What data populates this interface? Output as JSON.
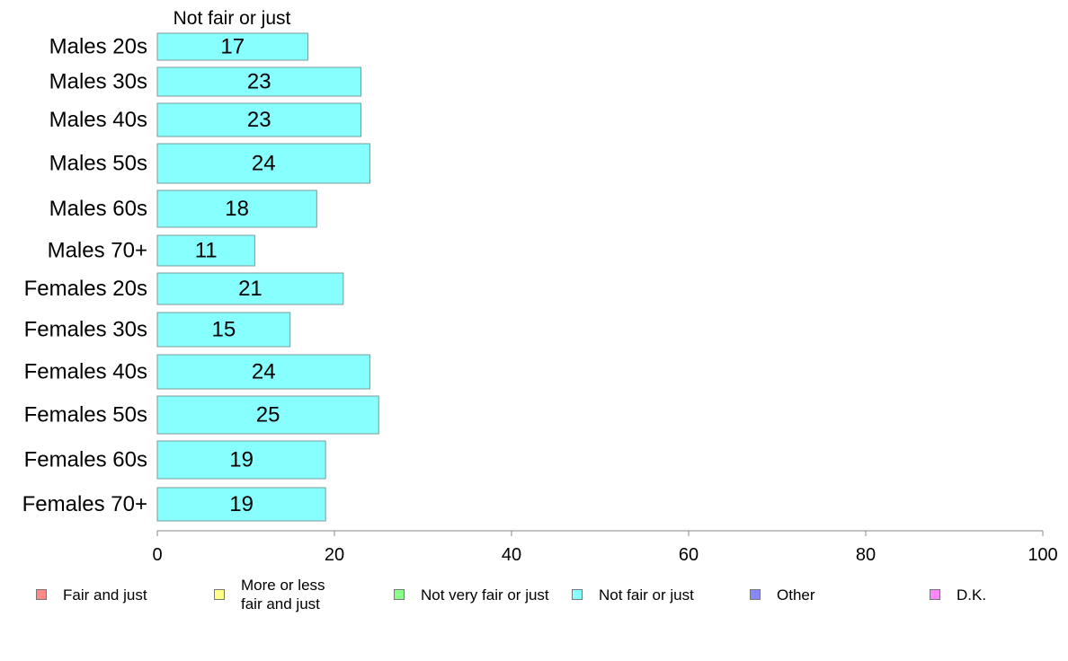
{
  "chart_data": {
    "type": "bar",
    "orientation": "horizontal",
    "series_label": "Not fair or just",
    "categories": [
      "Males 20s",
      "Males 30s",
      "Males 40s",
      "Males 50s",
      "Males 60s",
      "Males 70+",
      "Females 20s",
      "Females 30s",
      "Females 40s",
      "Females 50s",
      "Females 60s",
      "Females 70+"
    ],
    "values": [
      17,
      23,
      23,
      24,
      18,
      11,
      21,
      15,
      24,
      25,
      19,
      19
    ],
    "xlim": [
      0,
      100
    ],
    "xticks": [
      0,
      20,
      40,
      60,
      80,
      100
    ],
    "bar_color": "#88ffff",
    "bar_edge_color": "#7a9a9a",
    "grid": false,
    "legend_position": "bottom",
    "legend": [
      {
        "label": "Fair and just",
        "color": "#ff8888"
      },
      {
        "label": "More or less fair and just",
        "color": "#ffff88"
      },
      {
        "label": "Not very fair or just",
        "color": "#88ff88"
      },
      {
        "label": "Not fair or just",
        "color": "#88ffff"
      },
      {
        "label": "Other",
        "color": "#8888ff"
      },
      {
        "label": "D.K.",
        "color": "#ff88ff"
      }
    ]
  }
}
